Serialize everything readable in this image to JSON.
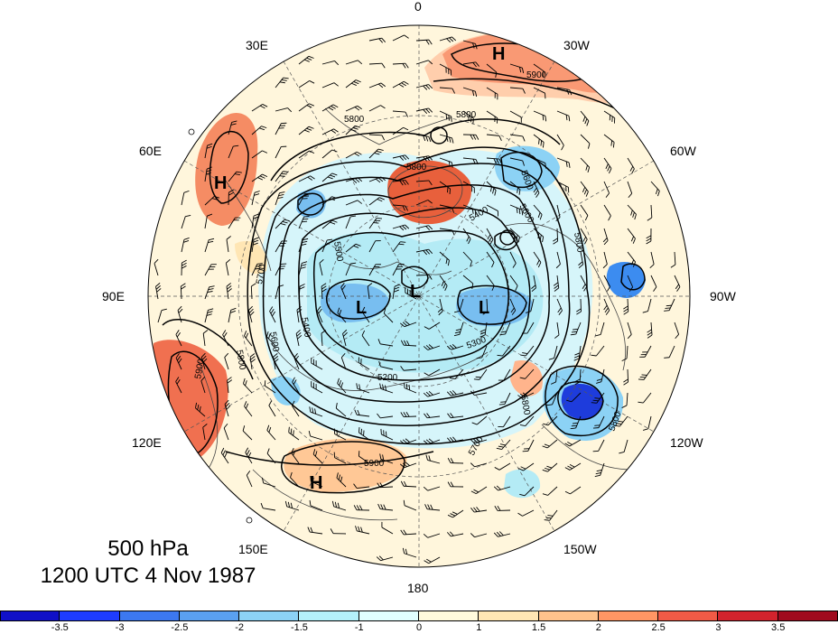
{
  "map": {
    "longitude_labels": [
      {
        "id": "lon-0",
        "text": "0"
      },
      {
        "id": "lon-30w",
        "text": "30W"
      },
      {
        "id": "lon-60w",
        "text": "60W"
      },
      {
        "id": "lon-90w",
        "text": "90W"
      },
      {
        "id": "lon-120w",
        "text": "120W"
      },
      {
        "id": "lon-150w",
        "text": "150W"
      },
      {
        "id": "lon-180",
        "text": "180"
      },
      {
        "id": "lon-150e",
        "text": "150E"
      },
      {
        "id": "lon-120e",
        "text": "120E"
      },
      {
        "id": "lon-90e",
        "text": "90E"
      },
      {
        "id": "lon-60e",
        "text": "60E"
      },
      {
        "id": "lon-30e",
        "text": "30E"
      }
    ],
    "pressure_centers": [
      {
        "id": "high-north-atlantic",
        "text": "H"
      },
      {
        "id": "high-ural",
        "text": "H"
      },
      {
        "id": "high-north-pacific",
        "text": "H"
      },
      {
        "id": "low-siberia",
        "text": "L"
      },
      {
        "id": "low-pole",
        "text": "L"
      },
      {
        "id": "low-canada",
        "text": "L"
      }
    ],
    "contour_labels": [
      {
        "id": "c-5900-atl",
        "text": "5900"
      },
      {
        "id": "c-5800-a",
        "text": "5800"
      },
      {
        "id": "c-5800-b",
        "text": "5800"
      },
      {
        "id": "c-5800-c",
        "text": "5800"
      },
      {
        "id": "c-5600-a",
        "text": "5600"
      },
      {
        "id": "c-5600-b",
        "text": "5600"
      },
      {
        "id": "c-5600-c",
        "text": "5600"
      },
      {
        "id": "c-5500",
        "text": "5500"
      },
      {
        "id": "c-5400-a",
        "text": "5400"
      },
      {
        "id": "c-5400-b",
        "text": "5400"
      },
      {
        "id": "c-5300",
        "text": "5300"
      },
      {
        "id": "c-5200",
        "text": "5200"
      },
      {
        "id": "c-5700-a",
        "text": "5700"
      },
      {
        "id": "c-5700-b",
        "text": "5700"
      },
      {
        "id": "c-5800-d",
        "text": "5800"
      },
      {
        "id": "c-5800-e",
        "text": "5800"
      },
      {
        "id": "c-5800-f",
        "text": "5800"
      },
      {
        "id": "c-5900-pac",
        "text": "5900"
      },
      {
        "id": "c-5900-asia",
        "text": "5900"
      },
      {
        "id": "c-5800-g",
        "text": "5800"
      }
    ]
  },
  "caption": {
    "level": "500 hPa",
    "datetime": "1200 UTC 4 Nov 1987"
  },
  "colorbar": {
    "tick_labels": [
      "-3.5",
      "-3",
      "-2.5",
      "-2",
      "-1.5",
      "-1",
      "0",
      "1",
      "1.5",
      "2",
      "2.5",
      "3",
      "3.5"
    ],
    "colors": [
      "#1010c8",
      "#1e3cff",
      "#3c78f0",
      "#5aa0f0",
      "#8cd2f5",
      "#b4f0fa",
      "#e1ffff",
      "#fffadc",
      "#ffe6b4",
      "#ffc38c",
      "#ff9664",
      "#f05a46",
      "#d2232d",
      "#a00a1e"
    ]
  }
}
